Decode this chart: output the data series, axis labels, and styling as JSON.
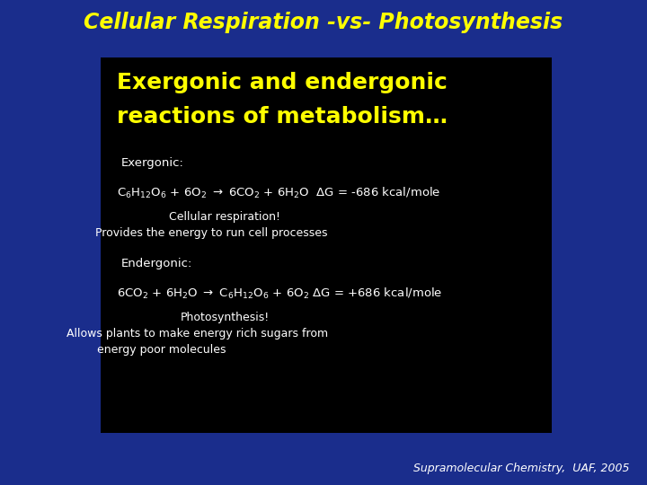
{
  "title": "Cellular Respiration -vs- Photosynthesis",
  "title_color": "#FFFF00",
  "title_fontsize": 17,
  "bg_color": "#1a2d8c",
  "box_color": "#000000",
  "subtitle_line1": "Exergonic and endergonic",
  "subtitle_line2": "reactions of metabolism…",
  "subtitle_color": "#FFFF00",
  "subtitle_fontsize": 18,
  "white_color": "#FFFFFF",
  "footer": "Supramolecular Chemistry,  UAF, 2005",
  "footer_color": "#FFFFFF",
  "footer_fontsize": 9,
  "label_fontsize": 9.5,
  "eq_fontsize": 9.5,
  "note_fontsize": 9
}
